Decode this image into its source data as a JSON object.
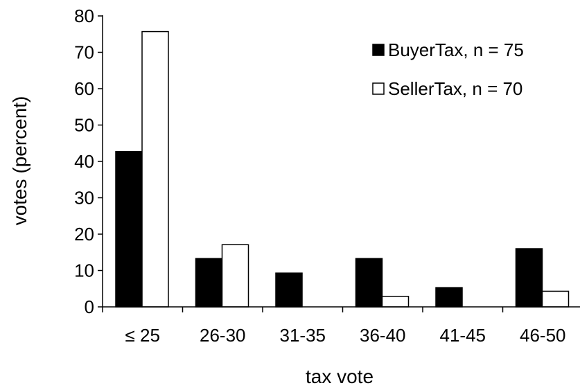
{
  "chart_data": {
    "type": "bar",
    "xlabel": "tax vote",
    "ylabel": "votes (percent)",
    "categories": [
      "≤ 25",
      "26-30",
      "31-35",
      "36-40",
      "41-45",
      "46-50"
    ],
    "series": [
      {
        "name": "BuyerTax, n = 75",
        "values": [
          42.7,
          13.3,
          9.3,
          13.3,
          5.3,
          16.0
        ],
        "fill": "#000000"
      },
      {
        "name": "SellerTax, n = 70",
        "values": [
          75.7,
          17.1,
          0.0,
          2.9,
          0.0,
          4.3
        ],
        "fill": "#ffffff"
      }
    ],
    "ylim": [
      0,
      80
    ],
    "yticks": [
      0,
      10,
      20,
      30,
      40,
      50,
      60,
      70,
      80
    ],
    "grid": false,
    "legend_position": "top-right"
  }
}
